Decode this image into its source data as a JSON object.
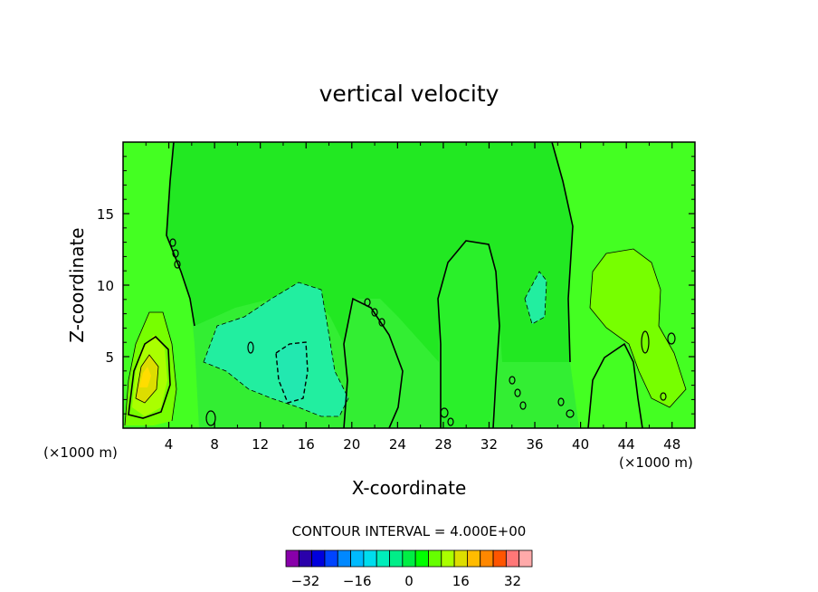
{
  "chart_data": {
    "type": "heatmap",
    "title": "vertical velocity",
    "xlabel": "X-coordinate",
    "ylabel": "Z-coordinate",
    "x_units": "(×1000 m)",
    "y_units": "(×1000 m)",
    "xlim": [
      0,
      50
    ],
    "ylim": [
      0,
      20
    ],
    "x_ticks": [
      4,
      8,
      12,
      16,
      20,
      24,
      28,
      32,
      36,
      40,
      44,
      48
    ],
    "y_ticks": [
      5,
      10,
      15
    ],
    "contour_interval_label": "CONTOUR INTERVAL = 4.000E+00",
    "colorbar": {
      "levels": [
        -36,
        -32,
        -28,
        -24,
        -20,
        -16,
        -12,
        -8,
        -4,
        0,
        4,
        8,
        12,
        16,
        20,
        24,
        28,
        32,
        36
      ],
      "tick_values": [
        -32,
        -16,
        0,
        16,
        32
      ],
      "tick_labels": [
        "−32",
        "−16",
        "0",
        "16",
        "32"
      ],
      "colors": [
        "#8800aa",
        "#2a00aa",
        "#0000dd",
        "#0044ff",
        "#0088ff",
        "#00bbff",
        "#00ddee",
        "#00eebb",
        "#00ee88",
        "#00ee44",
        "#00ff00",
        "#66ff00",
        "#aaff00",
        "#dddd00",
        "#ffbb00",
        "#ff8800",
        "#ff5500",
        "#ff7777",
        "#ffaaaa"
      ]
    },
    "background_color": "#33ee33",
    "features": [
      {
        "name": "updraft core near x=2.5, z=3.5",
        "max_value": 20
      },
      {
        "name": "updraft tower near x=30, z=0-13",
        "max_value": 4
      },
      {
        "name": "downdraft region near x=15, z=2-10",
        "min_value": -8
      },
      {
        "name": "updraft plume near x=44, z=1-12",
        "max_value": 8
      }
    ]
  }
}
